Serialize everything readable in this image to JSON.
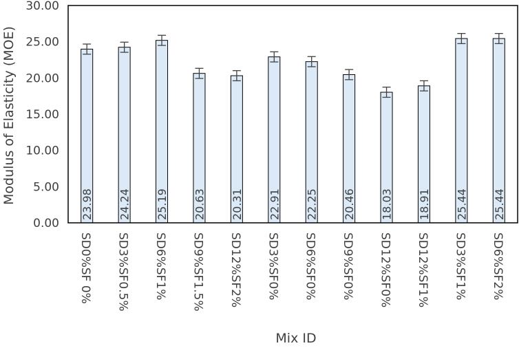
{
  "chart_data": {
    "type": "bar",
    "title": "",
    "xlabel": "Mix ID",
    "ylabel": "Modulus of Elasticity (MOE)",
    "ylim": [
      0,
      30
    ],
    "ytick_step": 5,
    "ytick_labels": [
      "0.00",
      "5.00",
      "10.00",
      "15.00",
      "20.00",
      "25.00",
      "30.00"
    ],
    "grid": false,
    "legend": "none",
    "categories": [
      "SD0%SF 0%",
      "SD3%SF0.5%",
      "SD6%SF1%",
      "SD9%SF1.5%",
      "SD12%SF2%",
      "SD3%SF0%",
      "SD6%SF0%",
      "SD9%SF0%",
      "SD12%SF0%",
      "SD12%SF1%",
      "SD3%SF1%",
      "SD6%SF2%"
    ],
    "values": [
      23.98,
      24.24,
      25.19,
      20.63,
      20.31,
      22.91,
      22.25,
      20.46,
      18.03,
      18.91,
      25.44,
      25.44
    ],
    "data_labels": [
      "23.98",
      "24.24",
      "25.19",
      "20.63",
      "20.31",
      "22.91",
      "22.25",
      "20.46",
      "18.03",
      "18.91",
      "25.44",
      "25.44"
    ],
    "error": [
      0.7,
      0.7,
      0.7,
      0.7,
      0.7,
      0.7,
      0.7,
      0.7,
      0.7,
      0.7,
      0.7,
      0.7
    ],
    "colors": {
      "bar_fill": "#dceaf7",
      "bar_stroke": "#000000",
      "axis": "#000000",
      "text": "#404040",
      "error_bar": "#404040"
    }
  }
}
